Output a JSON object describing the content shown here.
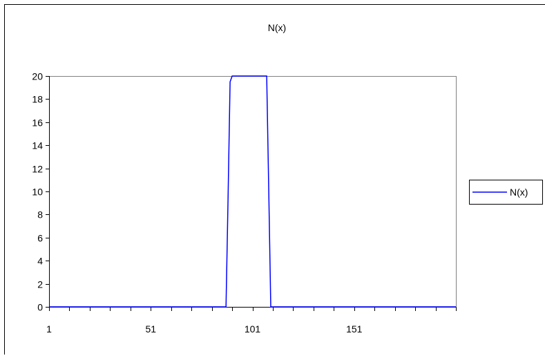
{
  "chart_data": {
    "type": "line",
    "title": "N(x)",
    "xlabel": "",
    "ylabel": "",
    "x_tick_labels": [
      "1",
      "51",
      "101",
      "151"
    ],
    "x_ticks_values": [
      1,
      51,
      101,
      151
    ],
    "xlim": [
      1,
      201
    ],
    "ylim": [
      0,
      20
    ],
    "y_ticks": [
      0,
      2,
      4,
      6,
      8,
      10,
      12,
      14,
      16,
      18,
      20
    ],
    "y_tick_labels": [
      "0",
      "2",
      "4",
      "6",
      "8",
      "10",
      "12",
      "14",
      "16",
      "18",
      "20"
    ],
    "grid": false,
    "legend_position": "right",
    "series": [
      {
        "name": "N(x)",
        "color": "#0000ff",
        "x": [
          1,
          88,
          89,
          90,
          91,
          108,
          109,
          110,
          201
        ],
        "y": [
          0,
          0,
          9.5,
          19.5,
          20,
          20,
          10,
          0,
          0
        ]
      }
    ]
  },
  "colors": {
    "background": "#ffffff",
    "plot_border": "#808080",
    "axis": "#000000",
    "series": "#0000ff"
  }
}
